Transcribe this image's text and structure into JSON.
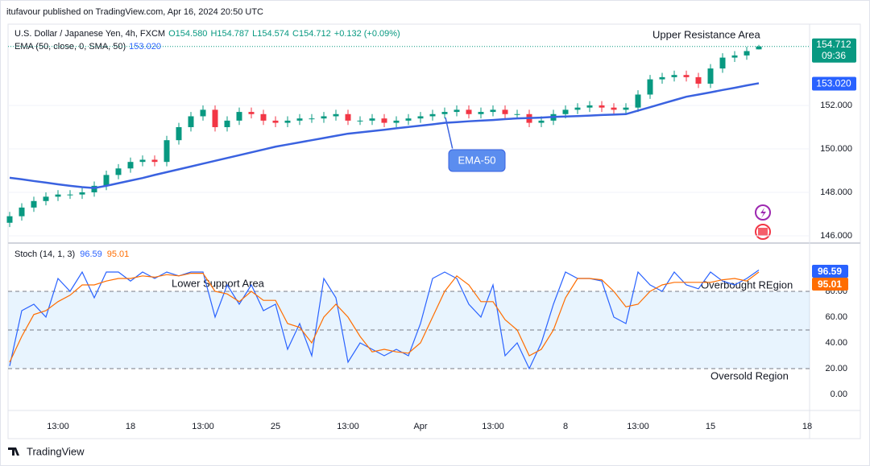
{
  "header": "itufavour published on TradingView.com, Apr 16, 2024 20:50 UTC",
  "footer": "TradingView",
  "chart_data": [
    {
      "type": "candlestick",
      "symbol": "U.S. Dollar / Japanese Yen, 4h, FXCM",
      "ohlc_labels": [
        "O154.580",
        "H154.787",
        "L154.574",
        "C154.712"
      ],
      "change": "+0.132 (+0.09%)",
      "countdown": "09:36",
      "up_color": "#089981",
      "down_color": "#f23645",
      "open": [
        146.6,
        146.9,
        147.3,
        147.6,
        147.8,
        147.9,
        147.9,
        148.0,
        148.3,
        148.8,
        149.1,
        149.4,
        149.5,
        149.4,
        150.4,
        151.0,
        151.5,
        151.8,
        151.0,
        151.3,
        151.7,
        151.6,
        151.3,
        151.2,
        151.3,
        151.4,
        151.4,
        151.5,
        151.6,
        151.3,
        151.3,
        151.4,
        151.2,
        151.3,
        151.4,
        151.5,
        151.6,
        151.7,
        151.8,
        151.6,
        151.7,
        151.8,
        151.6,
        151.6,
        151.2,
        151.3,
        151.6,
        151.8,
        151.9,
        152.0,
        151.9,
        151.8,
        151.9,
        152.5,
        153.2,
        153.3,
        153.4,
        153.3,
        153.0,
        153.7,
        154.2,
        154.3,
        154.58,
        null,
        null,
        null,
        null
      ],
      "high": [
        147.1,
        147.5,
        147.8,
        148.0,
        148.1,
        148.1,
        148.2,
        148.5,
        149.0,
        149.3,
        149.6,
        149.7,
        149.7,
        150.6,
        151.2,
        151.7,
        152.0,
        152.0,
        151.5,
        151.9,
        151.9,
        151.8,
        151.5,
        151.5,
        151.6,
        151.6,
        151.7,
        151.8,
        151.8,
        151.5,
        151.6,
        151.6,
        151.5,
        151.6,
        151.7,
        151.8,
        151.9,
        152.0,
        152.0,
        151.9,
        152.0,
        152.0,
        151.8,
        151.8,
        151.5,
        151.8,
        152.0,
        152.1,
        152.2,
        152.2,
        152.1,
        152.1,
        152.7,
        153.4,
        153.5,
        153.6,
        153.6,
        153.5,
        153.9,
        154.4,
        154.5,
        154.7,
        154.787,
        null,
        null,
        null,
        null
      ],
      "low": [
        146.4,
        146.7,
        147.1,
        147.4,
        147.6,
        147.7,
        147.7,
        147.8,
        148.1,
        148.6,
        148.9,
        149.2,
        149.2,
        149.2,
        150.2,
        150.8,
        151.3,
        150.8,
        150.8,
        151.1,
        151.4,
        151.1,
        151.0,
        151.0,
        151.1,
        151.2,
        151.2,
        151.3,
        151.1,
        151.1,
        151.1,
        151.0,
        151.0,
        151.1,
        151.2,
        151.3,
        151.4,
        151.5,
        151.4,
        151.4,
        151.5,
        151.4,
        151.4,
        151.0,
        151.0,
        151.1,
        151.4,
        151.6,
        151.7,
        151.7,
        151.6,
        151.6,
        151.7,
        152.3,
        153.0,
        153.1,
        153.1,
        152.8,
        152.8,
        153.5,
        154.0,
        154.1,
        154.574,
        null,
        null,
        null,
        null
      ],
      "close": [
        146.9,
        147.3,
        147.6,
        147.8,
        147.9,
        147.9,
        148.0,
        148.3,
        148.8,
        149.1,
        149.4,
        149.5,
        149.4,
        150.4,
        151.0,
        151.5,
        151.8,
        151.0,
        151.3,
        151.7,
        151.6,
        151.3,
        151.2,
        151.3,
        151.4,
        151.4,
        151.5,
        151.6,
        151.3,
        151.3,
        151.4,
        151.2,
        151.3,
        151.4,
        151.5,
        151.6,
        151.7,
        151.8,
        151.6,
        151.7,
        151.8,
        151.6,
        151.6,
        151.2,
        151.3,
        151.6,
        151.8,
        151.9,
        152.0,
        151.9,
        151.8,
        151.9,
        152.5,
        153.2,
        153.3,
        153.4,
        153.3,
        153.0,
        153.7,
        154.2,
        154.3,
        154.5,
        154.712,
        null,
        null,
        null,
        null
      ],
      "ema": {
        "name": "EMA (50, close, 0, SMA, 50)",
        "color": "#3a62e0",
        "badge_label": "153.020",
        "values": [
          148.67,
          148.6,
          148.52,
          148.45,
          148.37,
          148.3,
          148.24,
          148.2,
          148.3,
          148.42,
          148.54,
          148.66,
          148.8,
          148.93,
          149.06,
          149.19,
          149.32,
          149.45,
          149.58,
          149.71,
          149.84,
          149.97,
          150.1,
          150.2,
          150.3,
          150.4,
          150.5,
          150.6,
          150.7,
          150.76,
          150.82,
          150.88,
          150.95,
          151.01,
          151.07,
          151.13,
          151.2,
          151.23,
          151.27,
          151.3,
          151.33,
          151.37,
          151.4,
          151.42,
          151.44,
          151.47,
          151.49,
          151.51,
          151.53,
          151.56,
          151.58,
          151.6,
          151.76,
          151.92,
          152.08,
          152.24,
          152.4,
          152.5,
          152.6,
          152.71,
          152.81,
          152.92,
          153.02,
          null,
          null,
          null,
          null
        ]
      },
      "ylim": [
        145.74,
        155.74
      ],
      "yticks": [
        {
          "value": 146,
          "label": "146.000"
        },
        {
          "value": 148,
          "label": "148.000"
        },
        {
          "value": 150,
          "label": "150.000"
        },
        {
          "value": 152,
          "label": "152.000"
        }
      ],
      "grid": true,
      "annotations": [
        "Upper Resistance Area",
        "EMA-50"
      ]
    },
    {
      "type": "line",
      "title": "Stoch (14, 1, 3)",
      "categories": [
        null,
        null,
        null,
        null,
        "13:00",
        null,
        null,
        null,
        null,
        null,
        "18",
        null,
        null,
        null,
        null,
        null,
        "13:00",
        null,
        null,
        null,
        null,
        null,
        "25",
        null,
        null,
        null,
        null,
        null,
        "13:00",
        null,
        null,
        null,
        null,
        null,
        "Apr",
        null,
        null,
        null,
        null,
        null,
        "13:00",
        null,
        null,
        null,
        null,
        null,
        "8",
        null,
        null,
        null,
        null,
        null,
        "13:00",
        null,
        null,
        null,
        null,
        null,
        "15",
        null,
        null,
        null,
        null,
        null,
        null,
        null,
        "18"
      ],
      "series": [
        {
          "color": "#2962ff",
          "values": [
            22,
            65,
            70,
            60,
            90,
            80,
            95,
            75,
            95,
            95,
            88,
            95,
            90,
            95,
            92,
            95,
            95,
            60,
            85,
            70,
            85,
            65,
            70,
            35,
            55,
            30,
            90,
            75,
            25,
            40,
            35,
            30,
            35,
            30,
            55,
            90,
            95,
            90,
            70,
            60,
            85,
            30,
            40,
            20,
            40,
            70,
            95,
            90,
            90,
            88,
            60,
            55,
            95,
            85,
            80,
            95,
            85,
            82,
            95,
            88,
            85,
            90,
            96.59,
            null,
            null,
            null,
            null
          ]
        },
        {
          "color": "#ff6d00",
          "values": [
            25,
            45,
            62,
            65,
            72,
            77,
            85,
            85,
            88,
            90,
            90,
            92,
            91,
            93,
            92,
            94,
            94,
            80,
            78,
            72,
            80,
            73,
            73,
            55,
            52,
            40,
            60,
            70,
            60,
            45,
            33,
            35,
            33,
            32,
            40,
            60,
            80,
            92,
            85,
            72,
            72,
            58,
            50,
            30,
            35,
            50,
            75,
            90,
            90,
            89,
            80,
            68,
            70,
            80,
            85,
            87,
            87,
            87,
            87,
            89,
            90,
            88,
            95.01,
            null,
            null,
            null,
            null
          ]
        }
      ],
      "ylim": [
        -12.5,
        115.625
      ],
      "yticks": [
        {
          "value": 0,
          "label": "0.00"
        },
        {
          "value": 20,
          "label": "20.00"
        },
        {
          "value": 40,
          "label": "40.00"
        },
        {
          "value": 60,
          "label": "60.00"
        },
        {
          "value": 80,
          "label": "80.00"
        }
      ],
      "bands": [
        20,
        80
      ],
      "midline": 50,
      "band_color": "#2196f3",
      "annotations": [
        "Lower Support Area",
        "Overbought REgion",
        "Oversold Region"
      ]
    }
  ]
}
